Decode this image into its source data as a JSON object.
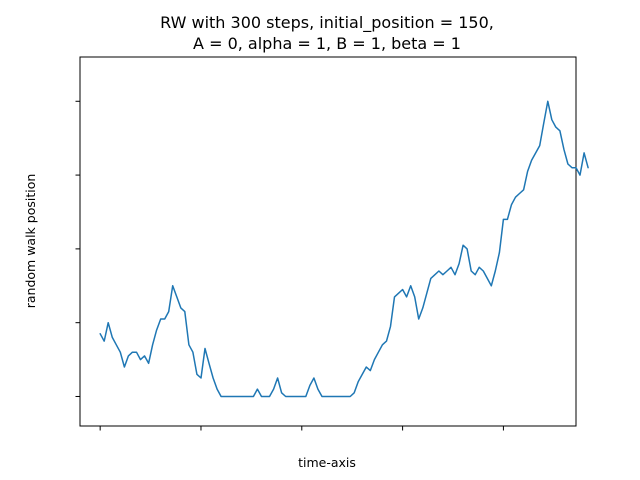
{
  "chart_data": {
    "type": "line",
    "title_line1": "RW with 300 steps, initial_position = 150,",
    "title_line2": "A = 0, alpha = 1, B = 1, beta = 1",
    "xlabel": "time-axis",
    "ylabel": "random walk position",
    "xlim": [
      -5,
      118
    ],
    "ylim": [
      -8,
      92
    ],
    "x_ticks": [
      0,
      25,
      50,
      75,
      100
    ],
    "y_ticks": [
      0,
      20,
      40,
      60,
      80
    ],
    "tick_labels_visible": false,
    "grid": false,
    "series": [
      {
        "color": "#1f77b4",
        "points": [
          [
            0,
            17
          ],
          [
            1,
            15
          ],
          [
            2,
            20
          ],
          [
            3,
            16
          ],
          [
            4,
            14
          ],
          [
            5,
            12
          ],
          [
            6,
            8
          ],
          [
            7,
            11
          ],
          [
            8,
            12
          ],
          [
            9,
            12
          ],
          [
            10,
            10
          ],
          [
            11,
            11
          ],
          [
            12,
            9
          ],
          [
            13,
            14
          ],
          [
            14,
            18
          ],
          [
            15,
            21
          ],
          [
            16,
            21
          ],
          [
            17,
            23
          ],
          [
            18,
            30
          ],
          [
            19,
            27
          ],
          [
            20,
            24
          ],
          [
            21,
            23
          ],
          [
            22,
            14
          ],
          [
            23,
            12
          ],
          [
            24,
            6
          ],
          [
            25,
            5
          ],
          [
            26,
            13
          ],
          [
            27,
            9
          ],
          [
            28,
            5
          ],
          [
            29,
            2
          ],
          [
            30,
            0
          ],
          [
            31,
            0
          ],
          [
            32,
            0
          ],
          [
            33,
            0
          ],
          [
            34,
            0
          ],
          [
            35,
            0
          ],
          [
            36,
            0
          ],
          [
            37,
            0
          ],
          [
            38,
            0
          ],
          [
            39,
            2
          ],
          [
            40,
            0
          ],
          [
            41,
            0
          ],
          [
            42,
            0
          ],
          [
            43,
            2
          ],
          [
            44,
            5
          ],
          [
            45,
            1
          ],
          [
            46,
            0
          ],
          [
            47,
            0
          ],
          [
            48,
            0
          ],
          [
            49,
            0
          ],
          [
            50,
            0
          ],
          [
            51,
            0
          ],
          [
            52,
            3
          ],
          [
            53,
            5
          ],
          [
            54,
            2
          ],
          [
            55,
            0
          ],
          [
            56,
            0
          ],
          [
            57,
            0
          ],
          [
            58,
            0
          ],
          [
            59,
            0
          ],
          [
            60,
            0
          ],
          [
            61,
            0
          ],
          [
            62,
            0
          ],
          [
            63,
            1
          ],
          [
            64,
            4
          ],
          [
            65,
            6
          ],
          [
            66,
            8
          ],
          [
            67,
            7
          ],
          [
            68,
            10
          ],
          [
            69,
            12
          ],
          [
            70,
            14
          ],
          [
            71,
            15
          ],
          [
            72,
            19
          ],
          [
            73,
            27
          ],
          [
            74,
            28
          ],
          [
            75,
            29
          ],
          [
            76,
            27
          ],
          [
            77,
            30
          ],
          [
            78,
            27
          ],
          [
            79,
            21
          ],
          [
            80,
            24
          ],
          [
            81,
            28
          ],
          [
            82,
            32
          ],
          [
            83,
            33
          ],
          [
            84,
            34
          ],
          [
            85,
            33
          ],
          [
            86,
            34
          ],
          [
            87,
            35
          ],
          [
            88,
            33
          ],
          [
            89,
            36
          ],
          [
            90,
            41
          ],
          [
            91,
            40
          ],
          [
            92,
            34
          ],
          [
            93,
            33
          ],
          [
            94,
            35
          ],
          [
            95,
            34
          ],
          [
            96,
            32
          ],
          [
            97,
            30
          ],
          [
            98,
            34
          ],
          [
            99,
            39
          ],
          [
            100,
            48
          ],
          [
            101,
            48
          ],
          [
            102,
            52
          ],
          [
            103,
            54
          ],
          [
            104,
            55
          ],
          [
            105,
            56
          ],
          [
            106,
            61
          ],
          [
            107,
            64
          ],
          [
            108,
            66
          ],
          [
            109,
            68
          ],
          [
            110,
            74
          ],
          [
            111,
            80
          ],
          [
            112,
            75
          ],
          [
            113,
            73
          ],
          [
            114,
            72
          ],
          [
            115,
            67
          ],
          [
            116,
            63
          ],
          [
            117,
            62
          ],
          [
            118,
            62
          ],
          [
            119,
            60
          ],
          [
            120,
            66
          ],
          [
            121,
            62
          ]
        ]
      }
    ]
  }
}
